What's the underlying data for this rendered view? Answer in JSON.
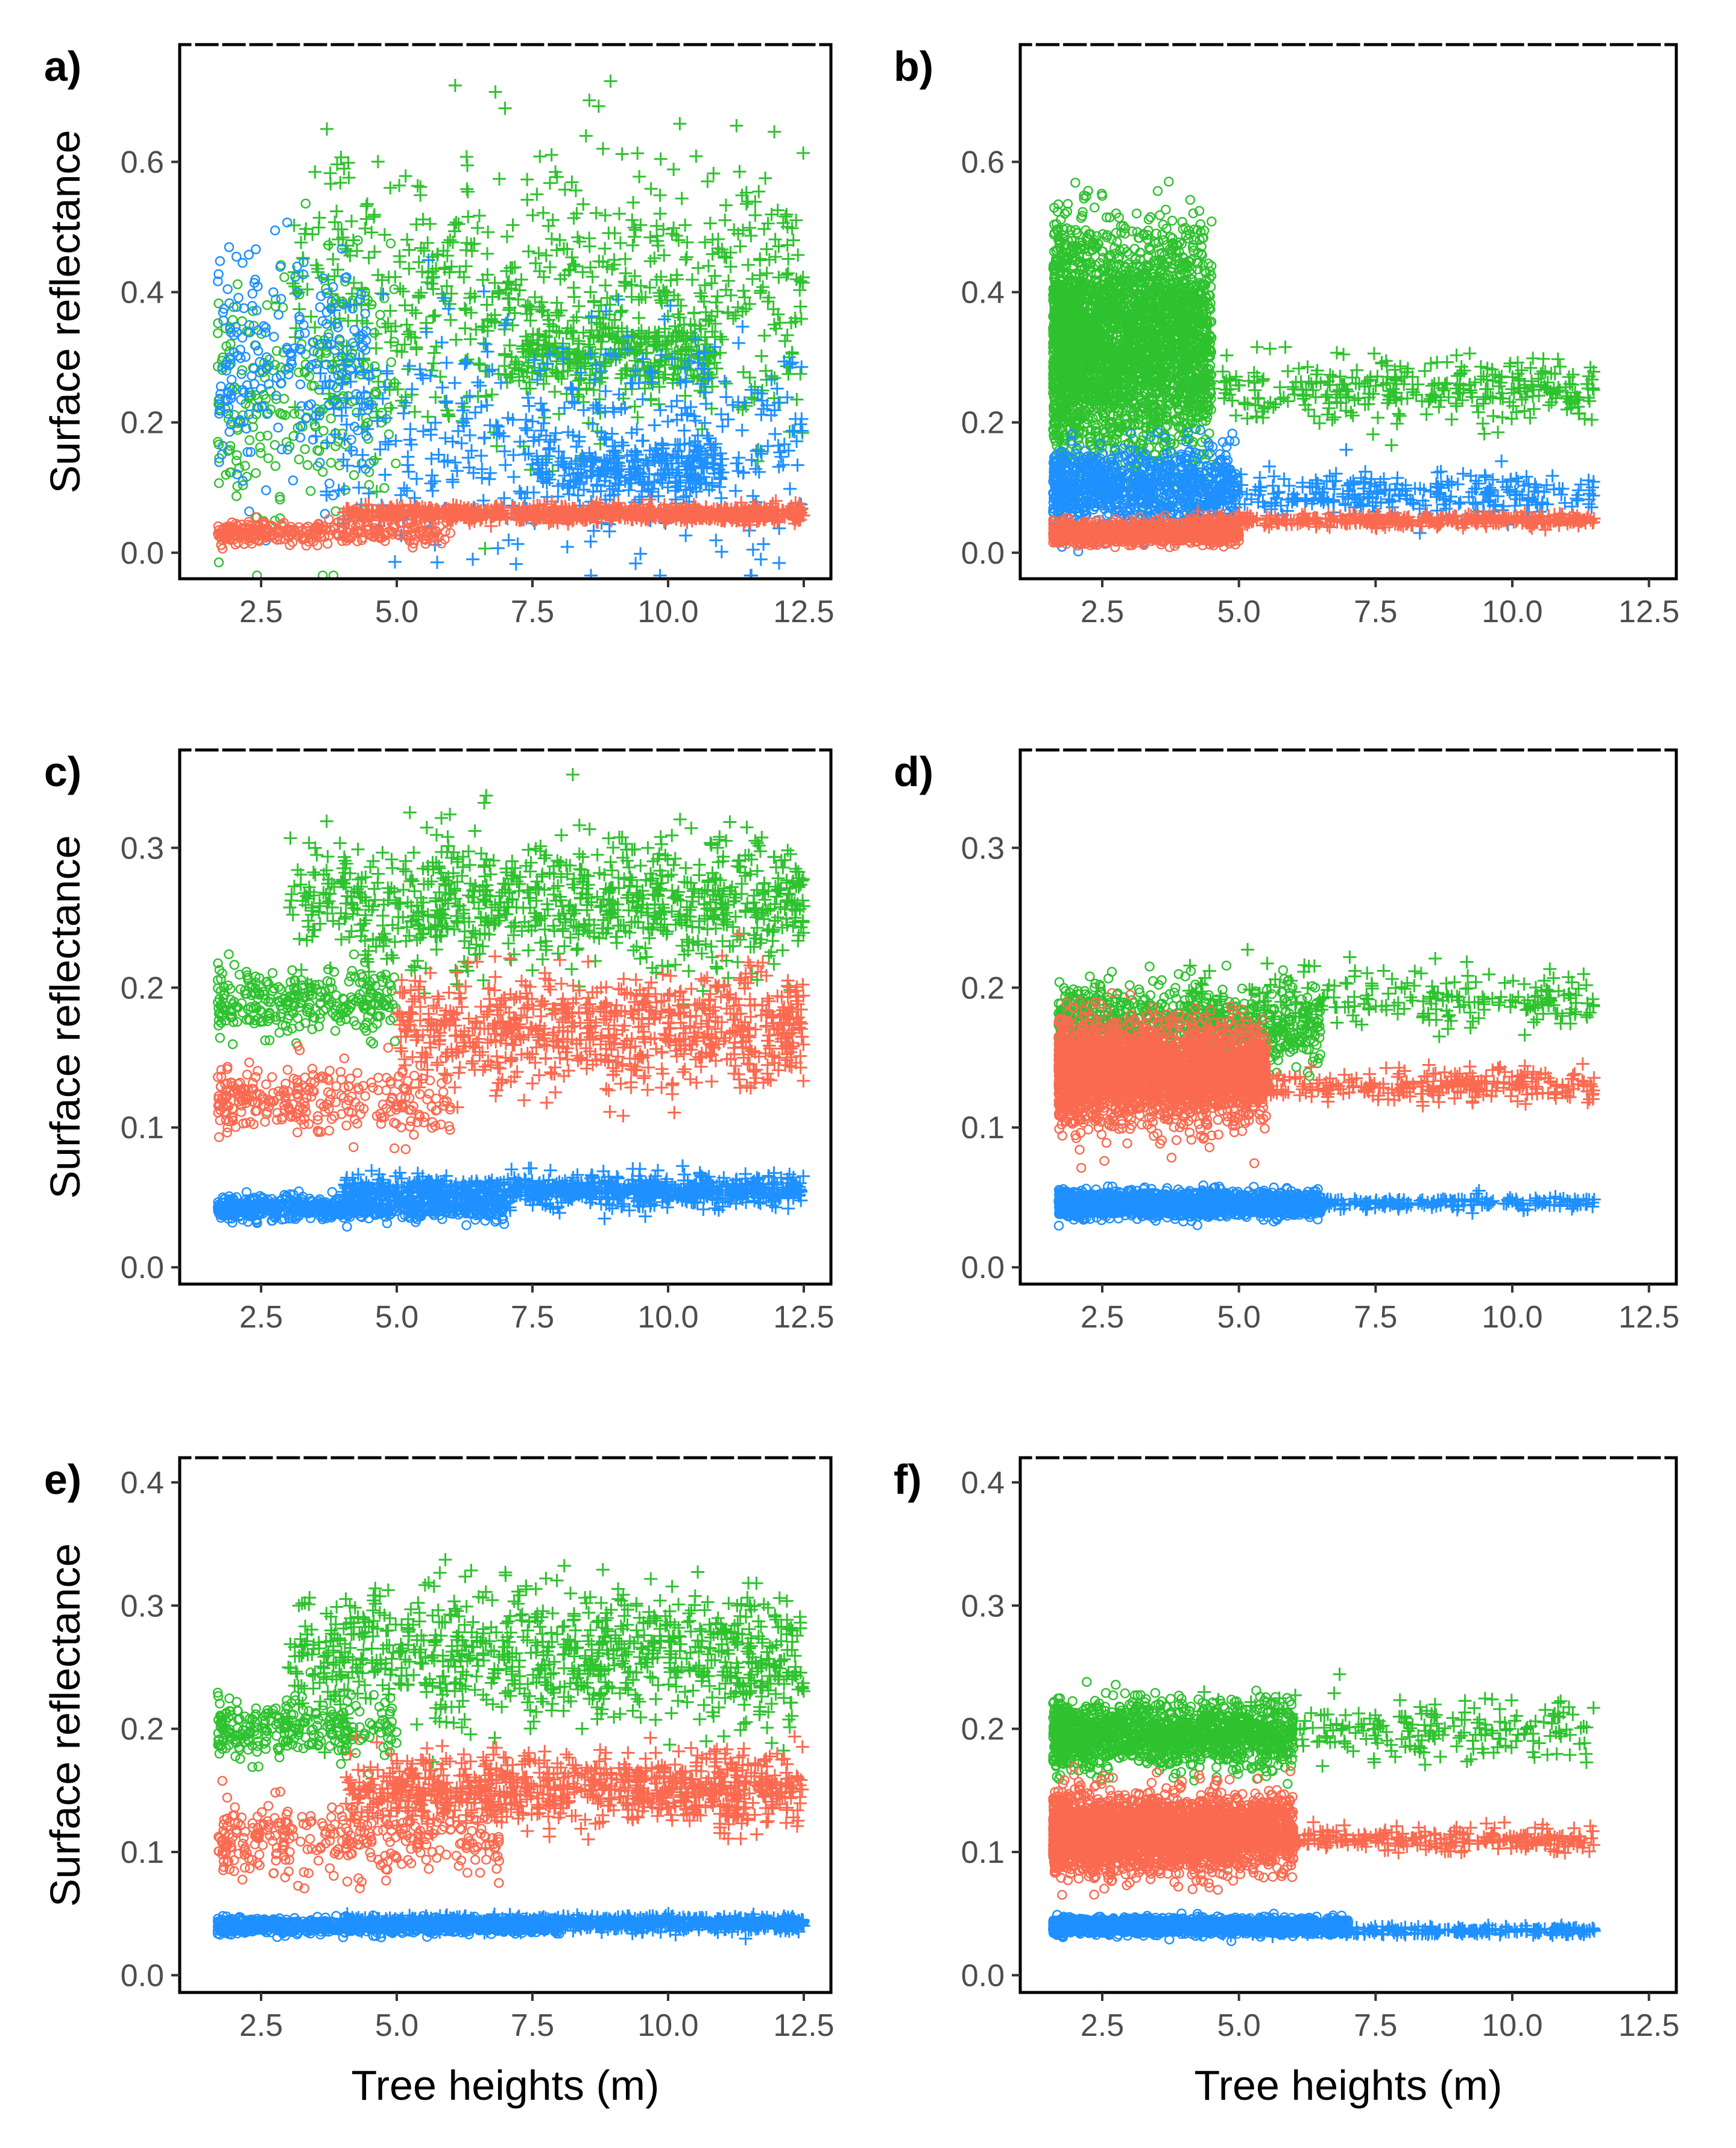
{
  "figure": {
    "x_axis_title": "Tree heights (m)",
    "y_axis_title": "Surface reflectance"
  },
  "chart_data": [
    {
      "panel": "a)",
      "type": "scatter",
      "xlim": [
        1.0,
        13.0
      ],
      "ylim": [
        -0.04,
        0.78
      ],
      "xticks": [
        2.5,
        5.0,
        7.5,
        10.0,
        12.5
      ],
      "yticks": [
        0.0,
        0.2,
        0.4,
        0.6
      ],
      "xlabel": "",
      "ylabel": "Surface reflectance",
      "series": [
        {
          "name": "green",
          "color": "#2fc22f",
          "clouds": [
            {
              "marker": "circle",
              "n": 260,
              "x": [
                1.7,
                5.0
              ],
              "y_center": 0.25,
              "y_spread": 0.16
            },
            {
              "marker": "plus",
              "n": 700,
              "x": [
                3.0,
                12.5
              ],
              "y_center": 0.4,
              "y_spread": 0.17
            },
            {
              "marker": "plus",
              "n": 300,
              "x": [
                7.0,
                11.0
              ],
              "y_center": 0.3,
              "y_spread": 0.05
            }
          ]
        },
        {
          "name": "blue",
          "color": "#1e90ff",
          "clouds": [
            {
              "marker": "circle",
              "n": 220,
              "x": [
                1.7,
                4.5
              ],
              "y_center": 0.3,
              "y_spread": 0.15
            },
            {
              "marker": "plus",
              "n": 450,
              "x": [
                3.5,
                12.5
              ],
              "y_center": 0.18,
              "y_spread": 0.14
            },
            {
              "marker": "plus",
              "n": 250,
              "x": [
                7.5,
                11.0
              ],
              "y_center": 0.13,
              "y_spread": 0.04
            }
          ]
        },
        {
          "name": "red",
          "color": "#fa6a50",
          "clouds": [
            {
              "marker": "circle",
              "n": 320,
              "x": [
                1.7,
                6.0
              ],
              "y_center": 0.03,
              "y_spread": 0.015
            },
            {
              "marker": "plus",
              "n": 900,
              "x": [
                4.0,
                12.5
              ],
              "y_center": 0.06,
              "y_spread": 0.01
            }
          ]
        }
      ]
    },
    {
      "panel": "b)",
      "type": "scatter",
      "xlim": [
        1.0,
        13.0
      ],
      "ylim": [
        -0.04,
        0.78
      ],
      "xticks": [
        2.5,
        5.0,
        7.5,
        10.0,
        12.5
      ],
      "yticks": [
        0.0,
        0.2,
        0.4,
        0.6
      ],
      "xlabel": "",
      "ylabel": "",
      "series": [
        {
          "name": "green",
          "color": "#2fc22f",
          "clouds": [
            {
              "marker": "circle",
              "n": 3200,
              "x": [
                1.6,
                4.5
              ],
              "y_center": 0.32,
              "y_spread": 0.14
            },
            {
              "marker": "plus",
              "n": 350,
              "x": [
                4.0,
                11.5
              ],
              "y_center": 0.25,
              "y_spread": 0.04
            }
          ]
        },
        {
          "name": "blue",
          "color": "#1e90ff",
          "clouds": [
            {
              "marker": "circle",
              "n": 900,
              "x": [
                1.6,
                5.0
              ],
              "y_center": 0.1,
              "y_spread": 0.05
            },
            {
              "marker": "plus",
              "n": 300,
              "x": [
                4.0,
                11.5
              ],
              "y_center": 0.09,
              "y_spread": 0.03
            }
          ]
        },
        {
          "name": "red",
          "color": "#fa6a50",
          "clouds": [
            {
              "marker": "circle",
              "n": 1400,
              "x": [
                1.6,
                5.0
              ],
              "y_center": 0.03,
              "y_spread": 0.012
            },
            {
              "marker": "plus",
              "n": 400,
              "x": [
                4.0,
                11.5
              ],
              "y_center": 0.05,
              "y_spread": 0.008
            }
          ]
        }
      ]
    },
    {
      "panel": "c)",
      "type": "scatter",
      "xlim": [
        1.0,
        13.0
      ],
      "ylim": [
        -0.012,
        0.37
      ],
      "xticks": [
        2.5,
        5.0,
        7.5,
        10.0,
        12.5
      ],
      "yticks": [
        0.0,
        0.1,
        0.2,
        0.3
      ],
      "xlabel": "",
      "ylabel": "Surface reflectance",
      "series": [
        {
          "name": "green",
          "color": "#2fc22f",
          "clouds": [
            {
              "marker": "circle",
              "n": 300,
              "x": [
                1.7,
                5.0
              ],
              "y_center": 0.19,
              "y_spread": 0.02
            },
            {
              "marker": "plus",
              "n": 900,
              "x": [
                3.0,
                12.5
              ],
              "y_center": 0.26,
              "y_spread": 0.04
            }
          ]
        },
        {
          "name": "red",
          "color": "#fa6a50",
          "clouds": [
            {
              "marker": "circle",
              "n": 300,
              "x": [
                1.7,
                6.0
              ],
              "y_center": 0.12,
              "y_spread": 0.02
            },
            {
              "marker": "plus",
              "n": 800,
              "x": [
                5.0,
                12.5
              ],
              "y_center": 0.17,
              "y_spread": 0.035
            }
          ]
        },
        {
          "name": "blue",
          "color": "#1e90ff",
          "clouds": [
            {
              "marker": "circle",
              "n": 700,
              "x": [
                1.7,
                7.0
              ],
              "y_center": 0.042,
              "y_spread": 0.007
            },
            {
              "marker": "plus",
              "n": 900,
              "x": [
                4.0,
                12.5
              ],
              "y_center": 0.055,
              "y_spread": 0.009
            }
          ]
        }
      ]
    },
    {
      "panel": "d)",
      "type": "scatter",
      "xlim": [
        1.0,
        13.0
      ],
      "ylim": [
        -0.012,
        0.37
      ],
      "xticks": [
        2.5,
        5.0,
        7.5,
        10.0,
        12.5
      ],
      "yticks": [
        0.0,
        0.1,
        0.2,
        0.3
      ],
      "xlabel": "",
      "ylabel": "",
      "series": [
        {
          "name": "green",
          "color": "#2fc22f",
          "clouds": [
            {
              "marker": "circle",
              "n": 900,
              "x": [
                1.7,
                6.5
              ],
              "y_center": 0.17,
              "y_spread": 0.025
            },
            {
              "marker": "plus",
              "n": 250,
              "x": [
                4.0,
                11.5
              ],
              "y_center": 0.19,
              "y_spread": 0.02
            }
          ]
        },
        {
          "name": "red",
          "color": "#fa6a50",
          "clouds": [
            {
              "marker": "circle",
              "n": 2800,
              "x": [
                1.7,
                5.5
              ],
              "y_center": 0.14,
              "y_spread": 0.03
            },
            {
              "marker": "plus",
              "n": 300,
              "x": [
                4.0,
                11.5
              ],
              "y_center": 0.13,
              "y_spread": 0.01
            }
          ]
        },
        {
          "name": "blue",
          "color": "#1e90ff",
          "clouds": [
            {
              "marker": "circle",
              "n": 2200,
              "x": [
                1.7,
                6.5
              ],
              "y_center": 0.045,
              "y_spread": 0.007
            },
            {
              "marker": "plus",
              "n": 250,
              "x": [
                4.0,
                11.5
              ],
              "y_center": 0.046,
              "y_spread": 0.004
            }
          ]
        }
      ]
    },
    {
      "panel": "e)",
      "type": "scatter",
      "xlim": [
        1.0,
        13.0
      ],
      "ylim": [
        -0.014,
        0.42
      ],
      "xticks": [
        2.5,
        5.0,
        7.5,
        10.0,
        12.5
      ],
      "yticks": [
        0.0,
        0.1,
        0.2,
        0.3,
        0.4
      ],
      "xlabel": "Tree heights (m)",
      "ylabel": "Surface reflectance",
      "series": [
        {
          "name": "green",
          "color": "#2fc22f",
          "clouds": [
            {
              "marker": "circle",
              "n": 280,
              "x": [
                1.7,
                5.0
              ],
              "y_center": 0.2,
              "y_spread": 0.02
            },
            {
              "marker": "plus",
              "n": 900,
              "x": [
                3.0,
                12.5
              ],
              "y_center": 0.26,
              "y_spread": 0.045
            }
          ]
        },
        {
          "name": "red",
          "color": "#fa6a50",
          "clouds": [
            {
              "marker": "circle",
              "n": 320,
              "x": [
                1.7,
                7.0
              ],
              "y_center": 0.11,
              "y_spread": 0.025
            },
            {
              "marker": "plus",
              "n": 900,
              "x": [
                4.0,
                12.5
              ],
              "y_center": 0.15,
              "y_spread": 0.025
            }
          ]
        },
        {
          "name": "blue",
          "color": "#1e90ff",
          "clouds": [
            {
              "marker": "circle",
              "n": 900,
              "x": [
                1.7,
                8.0
              ],
              "y_center": 0.04,
              "y_spread": 0.005
            },
            {
              "marker": "plus",
              "n": 900,
              "x": [
                4.0,
                12.5
              ],
              "y_center": 0.042,
              "y_spread": 0.005
            }
          ]
        }
      ]
    },
    {
      "panel": "f)",
      "type": "scatter",
      "xlim": [
        1.0,
        13.0
      ],
      "ylim": [
        -0.014,
        0.42
      ],
      "xticks": [
        2.5,
        5.0,
        7.5,
        10.0,
        12.5
      ],
      "yticks": [
        0.0,
        0.1,
        0.2,
        0.3,
        0.4
      ],
      "xlabel": "Tree heights (m)",
      "ylabel": "",
      "series": [
        {
          "name": "green",
          "color": "#2fc22f",
          "clouds": [
            {
              "marker": "circle",
              "n": 1400,
              "x": [
                1.6,
                6.0
              ],
              "y_center": 0.195,
              "y_spread": 0.022
            },
            {
              "marker": "plus",
              "n": 250,
              "x": [
                4.0,
                11.5
              ],
              "y_center": 0.2,
              "y_spread": 0.02
            }
          ]
        },
        {
          "name": "red",
          "color": "#fa6a50",
          "clouds": [
            {
              "marker": "circle",
              "n": 3000,
              "x": [
                1.6,
                6.0
              ],
              "y_center": 0.115,
              "y_spread": 0.025
            },
            {
              "marker": "plus",
              "n": 300,
              "x": [
                4.0,
                11.5
              ],
              "y_center": 0.11,
              "y_spread": 0.008
            }
          ]
        },
        {
          "name": "blue",
          "color": "#1e90ff",
          "clouds": [
            {
              "marker": "circle",
              "n": 2200,
              "x": [
                1.6,
                7.0
              ],
              "y_center": 0.04,
              "y_spread": 0.005
            },
            {
              "marker": "plus",
              "n": 300,
              "x": [
                4.0,
                11.5
              ],
              "y_center": 0.036,
              "y_spread": 0.003
            }
          ]
        }
      ]
    }
  ]
}
